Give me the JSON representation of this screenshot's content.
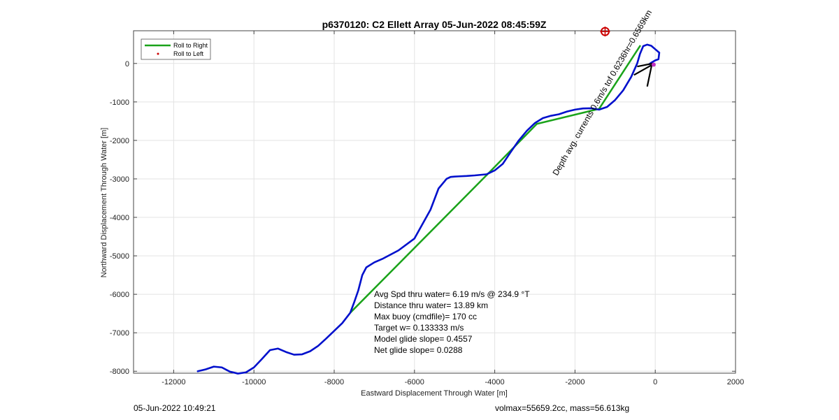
{
  "chart_data": {
    "type": "line",
    "title": "p6370120: C2 Ellett Array 05-Jun-2022 08:45:59Z",
    "xlabel": "Eastward Displacement Through Water [m]",
    "ylabel": "Northward Displacement Through Water [m]",
    "xlim": [
      -13000,
      2000
    ],
    "ylim": [
      -8050,
      850
    ],
    "xticks": [
      -12000,
      -10000,
      -8000,
      -6000,
      -4000,
      -2000,
      0,
      2000
    ],
    "yticks": [
      -8000,
      -7000,
      -6000,
      -5000,
      -4000,
      -3000,
      -2000,
      -1000,
      0
    ],
    "xtick_labels": [
      "-12000",
      "-10000",
      "-8000",
      "-6000",
      "-4000",
      "-2000",
      "0",
      "2000"
    ],
    "ytick_labels": [
      "-8000",
      "-7000",
      "-6000",
      "-5000",
      "-4000",
      "-3000",
      "-2000",
      "-1000",
      "0"
    ],
    "grid": true,
    "legend_position": "top-left",
    "legend": [
      "Roll to Right",
      "Roll to Left"
    ],
    "colors": {
      "track": "#0010cc",
      "roll_right": "#1aa31a",
      "roll_left": "#cc0000",
      "marker": "#cc0000",
      "vector": "#000000"
    },
    "series": [
      {
        "name": "Roll to Right",
        "x": [
          -7600,
          -4200,
          -2950,
          -1400,
          -370
        ],
        "y": [
          -6480,
          -2900,
          -1570,
          -1180,
          470
        ]
      },
      {
        "name": "track",
        "x": [
          -11400,
          -11200,
          -11000,
          -10800,
          -10600,
          -10400,
          -10200,
          -10000,
          -9800,
          -9600,
          -9400,
          -9200,
          -9000,
          -8800,
          -8600,
          -8400,
          -8200,
          -8000,
          -7800,
          -7600,
          -7500,
          -7400,
          -7300,
          -7200,
          -7000,
          -6800,
          -6400,
          -6000,
          -5600,
          -5400,
          -5200,
          -5100,
          -5000,
          -4900,
          -4700,
          -4500,
          -4200,
          -4000,
          -3800,
          -3600,
          -3400,
          -3200,
          -3000,
          -2800,
          -2600,
          -2400,
          -2200,
          -2000,
          -1800,
          -1600,
          -1400,
          -1200,
          -1000,
          -800,
          -600,
          -450,
          -380,
          -300,
          -200,
          -100,
          0,
          100,
          80,
          0,
          -100,
          -150
        ],
        "y": [
          -8000,
          -7950,
          -7880,
          -7900,
          -8010,
          -8060,
          -8030,
          -7900,
          -7680,
          -7450,
          -7410,
          -7500,
          -7570,
          -7560,
          -7480,
          -7340,
          -7150,
          -6950,
          -6750,
          -6480,
          -6200,
          -5900,
          -5500,
          -5300,
          -5170,
          -5080,
          -4860,
          -4550,
          -3800,
          -3250,
          -3000,
          -2950,
          -2940,
          -2935,
          -2925,
          -2910,
          -2880,
          -2780,
          -2610,
          -2300,
          -2000,
          -1750,
          -1550,
          -1420,
          -1360,
          -1320,
          -1250,
          -1200,
          -1170,
          -1165,
          -1200,
          -1130,
          -950,
          -700,
          -350,
          0,
          250,
          450,
          490,
          460,
          370,
          280,
          110,
          80,
          20,
          -20
        ]
      }
    ],
    "marker": {
      "x": -1250,
      "y": 830
    },
    "vectors": [
      {
        "x1": -530,
        "y1": -300,
        "x2": -70,
        "y2": -30
      },
      {
        "x1": -200,
        "y1": -600,
        "x2": -90,
        "y2": -50
      },
      {
        "x1": -450,
        "y1": -80,
        "x2": -60,
        "y2": 0
      }
    ],
    "rotated_annotation": "Depth avg. currents 0.6m/s tof 0.6236hr=0.6569km",
    "annotations": [
      "Avg Spd thru water=  6.19 m/s @ 234.9 °T",
      "Distance thru water= 13.89 km",
      "Max buoy (cmdfile)= 170 cc",
      "Target w= 0.133333 m/s",
      "Model glide slope= 0.4557",
      "Net glide slope= 0.0288"
    ]
  },
  "footer": {
    "left": "05-Jun-2022 10:49:21",
    "right": "volmax=55659.2cc, mass=56.613kg"
  }
}
